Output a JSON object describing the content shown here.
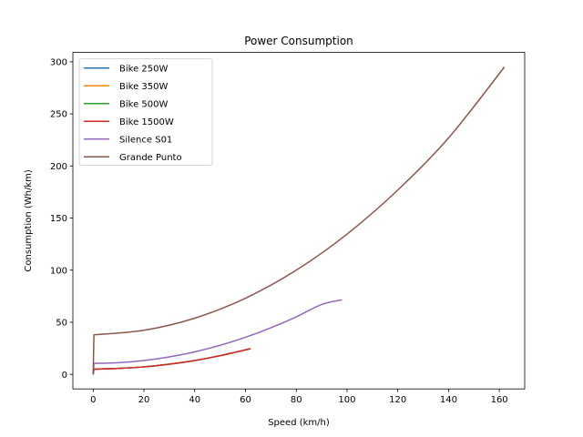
{
  "chart_data": {
    "type": "line",
    "title": "Power Consumption",
    "xlabel": "Speed (km/h)",
    "ylabel": "Consumption (Wh/km)",
    "xlim": [
      -8,
      170
    ],
    "ylim": [
      -14,
      309
    ],
    "xticks": [
      0,
      20,
      40,
      60,
      80,
      100,
      120,
      140,
      160
    ],
    "yticks": [
      0,
      50,
      100,
      150,
      200,
      250,
      300
    ],
    "grid": false,
    "legend_position": "top-left",
    "series": [
      {
        "name": "Bike 250W",
        "color": "#1f77b4",
        "x": [
          0,
          0.3,
          10,
          20,
          30,
          40,
          50,
          62
        ],
        "y": [
          0,
          5,
          5.7,
          7.2,
          9.8,
          13.3,
          17.9,
          24.6
        ]
      },
      {
        "name": "Bike 350W",
        "color": "#ff7f0e",
        "x": [
          0,
          0.3,
          10,
          20,
          30,
          40,
          50,
          62
        ],
        "y": [
          0,
          5,
          5.7,
          7.2,
          9.8,
          13.3,
          17.9,
          24.6
        ]
      },
      {
        "name": "Bike 500W",
        "color": "#2ca02c",
        "x": [
          0,
          0.3,
          10,
          20,
          30,
          40,
          50,
          62
        ],
        "y": [
          0,
          5,
          5.7,
          7.2,
          9.8,
          13.3,
          17.9,
          24.6
        ]
      },
      {
        "name": "Bike 1500W",
        "color": "#d62728",
        "x": [
          0,
          0.3,
          10,
          20,
          30,
          40,
          50,
          62
        ],
        "y": [
          0,
          5,
          5.7,
          7.2,
          9.8,
          13.3,
          17.9,
          24.6
        ]
      },
      {
        "name": "Silence S01",
        "color": "#9467bd",
        "x": [
          0,
          0.3,
          10,
          20,
          30,
          40,
          50,
          60,
          70,
          80,
          90,
          98
        ],
        "y": [
          0,
          10.5,
          11.2,
          13.3,
          16.8,
          21.6,
          27.9,
          35.6,
          44.7,
          55.2,
          67.1,
          71.5
        ]
      },
      {
        "name": "Grande Punto",
        "color": "#8c564b",
        "x": [
          0,
          0.3,
          20,
          40,
          60,
          80,
          100,
          120,
          140,
          162
        ],
        "y": [
          0,
          38,
          42.3,
          53.9,
          73.1,
          100,
          134.6,
          176.9,
          226.9,
          295
        ]
      }
    ]
  }
}
